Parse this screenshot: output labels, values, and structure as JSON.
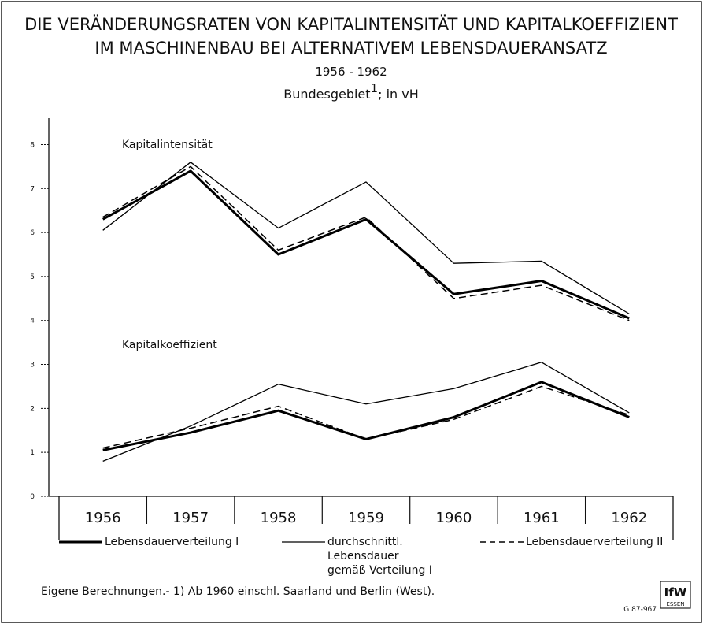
{
  "chart_data": {
    "type": "line",
    "title": [
      "DIE VERÄNDERUNGSRATEN VON KAPITALINTENSITÄT UND KAPITALKOEFFIZIENT",
      "IM MASCHINENBAU BEI ALTERNATIVEM LEBENSDAUERANSATZ"
    ],
    "period": "1956 - 1962",
    "region": "Bundesgebiet",
    "footnote_mark": "1",
    "unit": "; in vH",
    "categories": [
      "1956",
      "1957",
      "1958",
      "1959",
      "1960",
      "1961",
      "1962"
    ],
    "ylim": [
      0,
      8.6
    ],
    "yticks": [
      0,
      1,
      2,
      3,
      4,
      5,
      6,
      7,
      8
    ],
    "series": [
      {
        "name": "Lebensdauerverteilung I",
        "color": "#000000",
        "style": "thick"
      },
      {
        "name": "durchschnittl.\nLebensdauer\ngemäß Verteilung I",
        "color": "#000000",
        "style": "thin"
      },
      {
        "name": "Lebensdauerverteilung II",
        "color": "#000000",
        "style": "dashed"
      }
    ],
    "groups": [
      {
        "label": "Kapitalintensität",
        "values": [
          [
            6.3,
            7.4,
            5.5,
            6.3,
            4.6,
            4.9,
            4.05
          ],
          [
            6.05,
            7.6,
            6.1,
            7.15,
            5.3,
            5.35,
            4.15
          ],
          [
            6.35,
            7.5,
            5.6,
            6.35,
            4.5,
            4.8,
            4.0
          ]
        ]
      },
      {
        "label": "Kapitalkoeffizient",
        "values": [
          [
            1.05,
            1.45,
            1.95,
            1.3,
            1.8,
            2.6,
            1.8
          ],
          [
            0.8,
            1.6,
            2.55,
            2.1,
            2.45,
            3.05,
            1.9
          ],
          [
            1.1,
            1.55,
            2.05,
            1.3,
            1.75,
            2.5,
            1.85
          ]
        ]
      }
    ],
    "source": "Eigene Berechnungen.- 1) Ab 1960 einschl. Saarland und Berlin (West).",
    "logo": [
      "IfW",
      "ESSEN"
    ],
    "code": "G 87-967"
  }
}
